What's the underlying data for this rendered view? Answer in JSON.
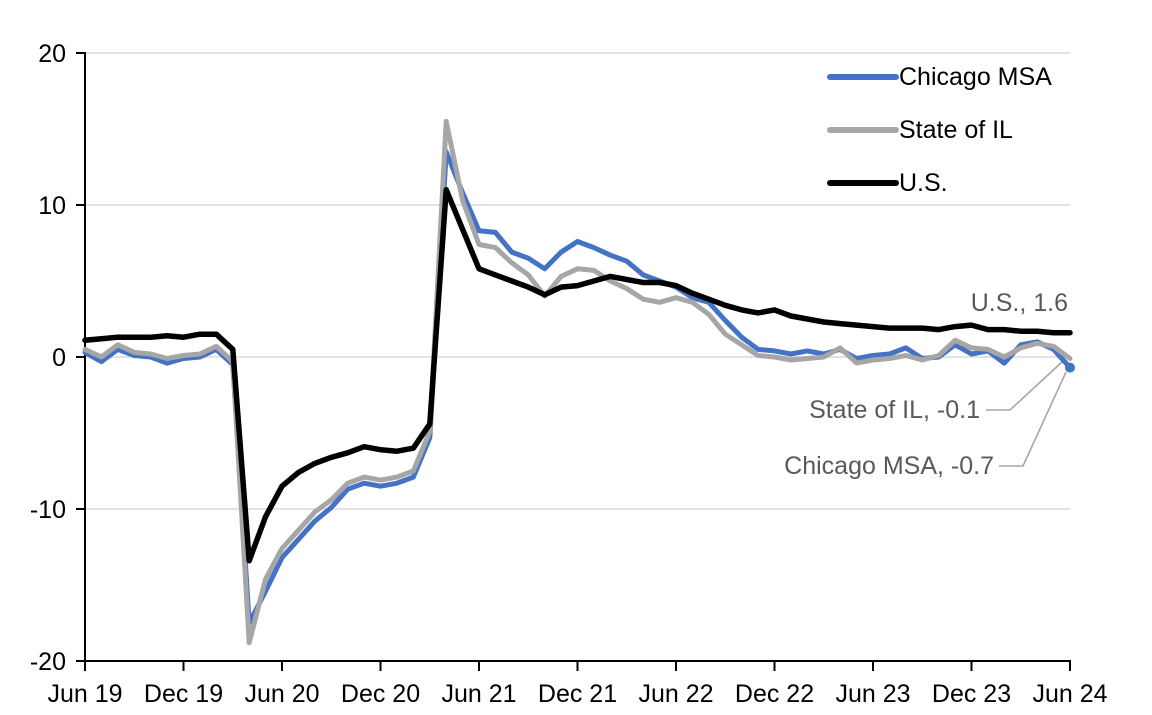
{
  "chart_data": {
    "type": "line",
    "title": "",
    "ylabel": "",
    "xlabel": "",
    "ylim": [
      -20,
      20
    ],
    "y_ticks": [
      20,
      10,
      0,
      -10,
      -20
    ],
    "grid": "horizontal",
    "gridline_color": "#D9D9D9",
    "axis_color": "#000000",
    "legend_position": "top-right-inside",
    "x_tick_labels": [
      "Jun 19",
      "Dec 19",
      "Jun 20",
      "Dec 20",
      "Jun 21",
      "Dec 21",
      "Jun 22",
      "Dec 22",
      "Jun 23",
      "Dec 23",
      "Jun 24"
    ],
    "months": [
      "Jun 19",
      "Jul 19",
      "Aug 19",
      "Sep 19",
      "Oct 19",
      "Nov 19",
      "Dec 19",
      "Jan 20",
      "Feb 20",
      "Mar 20",
      "Apr 20",
      "May 20",
      "Jun 20",
      "Jul 20",
      "Aug 20",
      "Sep 20",
      "Oct 20",
      "Nov 20",
      "Dec 20",
      "Jan 21",
      "Feb 21",
      "Mar 21",
      "Apr 21",
      "May 21",
      "Jun 21",
      "Jul 21",
      "Aug 21",
      "Sep 21",
      "Oct 21",
      "Nov 21",
      "Dec 21",
      "Jan 22",
      "Feb 22",
      "Mar 22",
      "Apr 22",
      "May 22",
      "Jun 22",
      "Jul 22",
      "Aug 22",
      "Sep 22",
      "Oct 22",
      "Nov 22",
      "Dec 22",
      "Jan 23",
      "Feb 23",
      "Mar 23",
      "Apr 23",
      "May 23",
      "Jun 23",
      "Jul 23",
      "Aug 23",
      "Sep 23",
      "Oct 23",
      "Nov 23",
      "Dec 23",
      "Jan 24",
      "Feb 24",
      "Mar 24",
      "Apr 24",
      "May 24",
      "Jun 24"
    ],
    "series": [
      {
        "name": "Chicago MSA",
        "color": "#4472C4",
        "end_value": -0.7,
        "values": [
          0.3,
          -0.3,
          0.5,
          0.1,
          0.0,
          -0.4,
          -0.1,
          0.0,
          0.5,
          -0.5,
          -17.5,
          -15.4,
          -13.2,
          -12.0,
          -10.8,
          -9.9,
          -8.7,
          -8.3,
          -8.5,
          -8.3,
          -7.9,
          -5.3,
          13.5,
          10.8,
          8.3,
          8.2,
          6.9,
          6.5,
          5.8,
          6.9,
          7.6,
          7.2,
          6.7,
          6.3,
          5.4,
          5.0,
          4.6,
          3.9,
          3.6,
          2.4,
          1.3,
          0.5,
          0.4,
          0.2,
          0.4,
          0.2,
          0.5,
          -0.1,
          0.1,
          0.2,
          0.6,
          -0.1,
          0.0,
          0.8,
          0.2,
          0.4,
          -0.4,
          0.8,
          1.0,
          0.5,
          -0.7
        ]
      },
      {
        "name": "State of IL",
        "color": "#A6A6A6",
        "end_value": -0.1,
        "values": [
          0.5,
          0.0,
          0.8,
          0.3,
          0.2,
          -0.1,
          0.1,
          0.2,
          0.7,
          -0.3,
          -18.8,
          -14.6,
          -12.6,
          -11.4,
          -10.2,
          -9.4,
          -8.3,
          -7.9,
          -8.1,
          -7.9,
          -7.5,
          -4.9,
          15.5,
          10.3,
          7.4,
          7.2,
          6.2,
          5.4,
          4.0,
          5.3,
          5.8,
          5.7,
          5.0,
          4.5,
          3.8,
          3.6,
          3.9,
          3.6,
          2.8,
          1.5,
          0.8,
          0.1,
          0.0,
          -0.2,
          -0.1,
          0.0,
          0.6,
          -0.4,
          -0.2,
          -0.1,
          0.1,
          -0.2,
          0.1,
          1.1,
          0.6,
          0.5,
          0.0,
          0.6,
          0.9,
          0.7,
          -0.1
        ]
      },
      {
        "name": "U.S.",
        "color": "#000000",
        "end_value": 1.6,
        "values": [
          1.1,
          1.2,
          1.3,
          1.3,
          1.3,
          1.4,
          1.3,
          1.5,
          1.5,
          0.5,
          -13.4,
          -10.5,
          -8.5,
          -7.6,
          -7.0,
          -6.6,
          -6.3,
          -5.9,
          -6.1,
          -6.2,
          -6.0,
          -4.4,
          11.0,
          8.4,
          5.8,
          5.4,
          5.0,
          4.6,
          4.1,
          4.6,
          4.7,
          5.0,
          5.3,
          5.1,
          4.9,
          4.9,
          4.7,
          4.2,
          3.8,
          3.4,
          3.1,
          2.9,
          3.1,
          2.7,
          2.5,
          2.3,
          2.2,
          2.1,
          2.0,
          1.9,
          1.9,
          1.9,
          1.8,
          2.0,
          2.1,
          1.8,
          1.8,
          1.7,
          1.7,
          1.6,
          1.6
        ]
      }
    ],
    "end_labels": [
      {
        "text": "U.S., 1.6"
      },
      {
        "text": "State of IL, -0.1"
      },
      {
        "text": "Chicago MSA, -0.7"
      }
    ],
    "end_marker": {
      "series": "Chicago MSA",
      "shape": "circle"
    },
    "annotation_text_color": "#595959",
    "leader_line_color": "#A6A6A6"
  }
}
